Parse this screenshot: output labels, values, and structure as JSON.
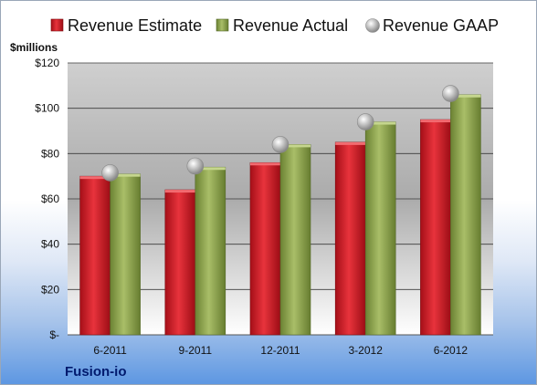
{
  "chart_data": {
    "type": "bar",
    "unit_label": "$millions",
    "categories": [
      "6-2011",
      "9-2011",
      "12-2011",
      "3-2012",
      "6-2012"
    ],
    "series": [
      {
        "name": "Revenue Estimate",
        "values": [
          70,
          64,
          76,
          85,
          95
        ],
        "color": "#d7212b"
      },
      {
        "name": "Revenue Actual",
        "values": [
          71,
          74,
          84,
          94,
          106
        ],
        "color": "#8ea54e"
      },
      {
        "name": "Revenue GAAP",
        "values": [
          71.5,
          74.5,
          84,
          94,
          106.5
        ],
        "color": "#b9b9b9"
      }
    ],
    "ylim": [
      0,
      120
    ],
    "y_ticks": [
      {
        "value": 0,
        "label": "$-"
      },
      {
        "value": 20,
        "label": "$20"
      },
      {
        "value": 40,
        "label": "$40"
      },
      {
        "value": 60,
        "label": "$60"
      },
      {
        "value": 80,
        "label": "$80"
      },
      {
        "value": 100,
        "label": "$100"
      },
      {
        "value": 120,
        "label": "$120"
      }
    ],
    "grid": true,
    "legend_position": "top"
  },
  "footer": {
    "company": "Fusion-io"
  }
}
